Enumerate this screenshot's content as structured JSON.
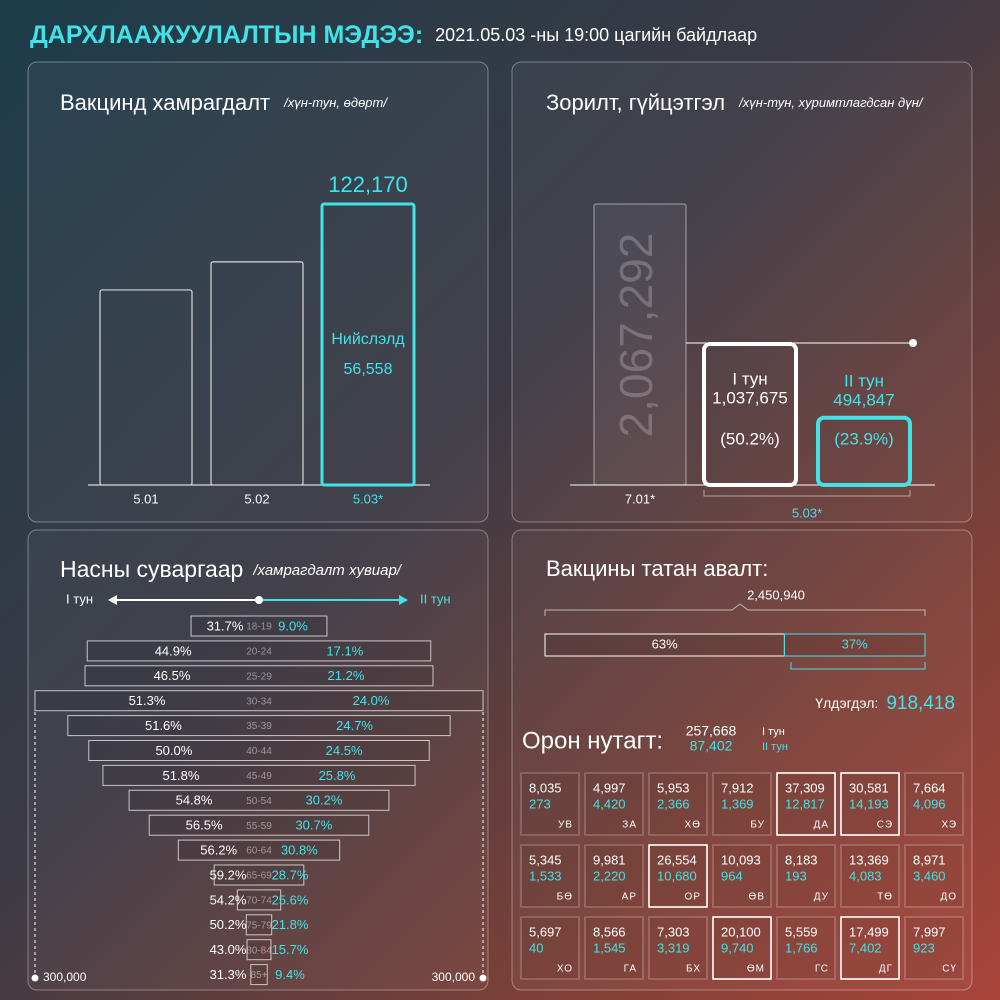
{
  "header": {
    "title": "ДАРХЛААЖУУЛАЛТЫН МЭДЭЭ:",
    "subtitle": "2021.05.03 -ны 19:00 цагийн байдлаар"
  },
  "daily": {
    "type": "bar",
    "title": "Вакцинд хамрагдалт",
    "unit": "/хүн-тун, өдөрт/",
    "categories": [
      "5.01",
      "5.02",
      "5.03*"
    ],
    "values": [
      84800,
      97000,
      122170
    ],
    "value_labels": [
      null,
      null,
      "122,170"
    ],
    "colors": [
      "#d9d9d9",
      "#d9d9d9",
      "#41e3e6"
    ],
    "capital": {
      "label": "Нийслэлд",
      "value": "56,558"
    }
  },
  "target": {
    "type": "bar",
    "title": "Зорилт, гүйцэтгэл",
    "unit": "/хүн-тун, хуримтлагдсан дүн/",
    "goal": {
      "category": "7.01*",
      "value": 2067292,
      "value_label": "2,067,292"
    },
    "category": "5.03*",
    "series": [
      {
        "name": "I тун",
        "value": 1037675,
        "value_label": "1,037,675",
        "share": "(50.2%)",
        "color": "#ffffff"
      },
      {
        "name": "II тун",
        "value": 494847,
        "value_label": "494,847",
        "share": "(23.9%)",
        "color": "#41e3e6"
      }
    ]
  },
  "age": {
    "type": "butterfly",
    "title": "Насны суваргаар",
    "unit": "/хамрагдалт хувиар/",
    "xlim": [
      -300000,
      300000
    ],
    "xticks": [
      {
        "value": -300000,
        "label": "300,000"
      },
      {
        "value": 300000,
        "label": "300,000"
      }
    ],
    "categories": [
      "18-19",
      "20-24",
      "25-29",
      "30-34",
      "35-39",
      "40-44",
      "45-49",
      "50-54",
      "55-59",
      "60-64",
      "65-69",
      "70-74",
      "75-79",
      "80-84",
      "85+"
    ],
    "population": [
      91000,
      230000,
      233000,
      300000,
      256000,
      228000,
      209000,
      174000,
      147000,
      108000,
      60000,
      29000,
      17000,
      16000,
      11000
    ],
    "series": [
      {
        "name": "I тун",
        "color": "#ffffff",
        "values": [
          31.7,
          44.9,
          46.5,
          51.3,
          51.6,
          50,
          51.8,
          54.8,
          56.5,
          56.2,
          59.2,
          54.2,
          50.2,
          43,
          31.3
        ],
        "value_labels": [
          "31.7%",
          "44.9%",
          "46.5%",
          "51.3%",
          "51.6%",
          "50.0%",
          "51.8%",
          "54.8%",
          "56.5%",
          "56.2%",
          "59.2%",
          "54.2%",
          "50.2%",
          "43.0%",
          "31.3%"
        ]
      },
      {
        "name": "II тун",
        "color": "#41e3e6",
        "values": [
          9,
          17.1,
          21.2,
          24,
          24.7,
          24.5,
          25.8,
          30.2,
          30.7,
          30.8,
          28.7,
          25.6,
          21.8,
          15.7,
          9.4
        ],
        "value_labels": [
          "9.0%",
          "17.1%",
          "21.2%",
          "24.0%",
          "24.7%",
          "24.5%",
          "25.8%",
          "30.2%",
          "30.7%",
          "30.8%",
          "28.7%",
          "25.6%",
          "21.8%",
          "15.7%",
          "9.4%"
        ]
      }
    ]
  },
  "supply": {
    "title": "Вакцины татан авалт:",
    "total": "2,450,940",
    "segments": [
      {
        "value": 63,
        "label": "63%",
        "color": "#ffffff"
      },
      {
        "value": 37,
        "label": "37%",
        "color": "#41e3e6"
      }
    ],
    "remainder_label": "Үлдэгдэл:",
    "remainder": "918,418"
  },
  "regions": {
    "title": "Орон нутагт:",
    "totals": [
      {
        "value": "257,668",
        "dose": "I тун"
      },
      {
        "value": "87,402",
        "dose": "II тун"
      }
    ],
    "rows": [
      [
        {
          "code": "УВ",
          "dose1": "8,035",
          "dose2": "273",
          "highlight": false
        },
        {
          "code": "ЗА",
          "dose1": "4,997",
          "dose2": "4,420",
          "highlight": false
        },
        {
          "code": "ХӨ",
          "dose1": "5,953",
          "dose2": "2,366",
          "highlight": false
        },
        {
          "code": "БУ",
          "dose1": "7,912",
          "dose2": "1,369",
          "highlight": false
        },
        {
          "code": "ДА",
          "dose1": "37,309",
          "dose2": "12,817",
          "highlight": true
        },
        {
          "code": "СЭ",
          "dose1": "30,581",
          "dose2": "14,193",
          "highlight": true
        },
        {
          "code": "ХЭ",
          "dose1": "7,664",
          "dose2": "4,096",
          "highlight": false
        }
      ],
      [
        {
          "code": "БӨ",
          "dose1": "5,345",
          "dose2": "1,533",
          "highlight": false
        },
        {
          "code": "АР",
          "dose1": "9,981",
          "dose2": "2,220",
          "highlight": false
        },
        {
          "code": "ОР",
          "dose1": "26,554",
          "dose2": "10,680",
          "highlight": true
        },
        {
          "code": "ӨВ",
          "dose1": "10,093",
          "dose2": "964",
          "highlight": false
        },
        {
          "code": "ДУ",
          "dose1": "8,183",
          "dose2": "193",
          "highlight": false
        },
        {
          "code": "ТӨ",
          "dose1": "13,369",
          "dose2": "4,083",
          "highlight": false
        },
        {
          "code": "ДО",
          "dose1": "8,971",
          "dose2": "3,460",
          "highlight": false
        }
      ],
      [
        {
          "code": "ХО",
          "dose1": "5,697",
          "dose2": "40",
          "highlight": false
        },
        {
          "code": "ГА",
          "dose1": "8,566",
          "dose2": "1,545",
          "highlight": false
        },
        {
          "code": "БХ",
          "dose1": "7,303",
          "dose2": "3,319",
          "highlight": false
        },
        {
          "code": "ӨМ",
          "dose1": "20,100",
          "dose2": "9,740",
          "highlight": true
        },
        {
          "code": "ГС",
          "dose1": "5,559",
          "dose2": "1,766",
          "highlight": false
        },
        {
          "code": "ДГ",
          "dose1": "17,499",
          "dose2": "7,402",
          "highlight": true
        },
        {
          "code": "СҮ",
          "dose1": "7,997",
          "dose2": "923",
          "highlight": false
        }
      ]
    ]
  }
}
